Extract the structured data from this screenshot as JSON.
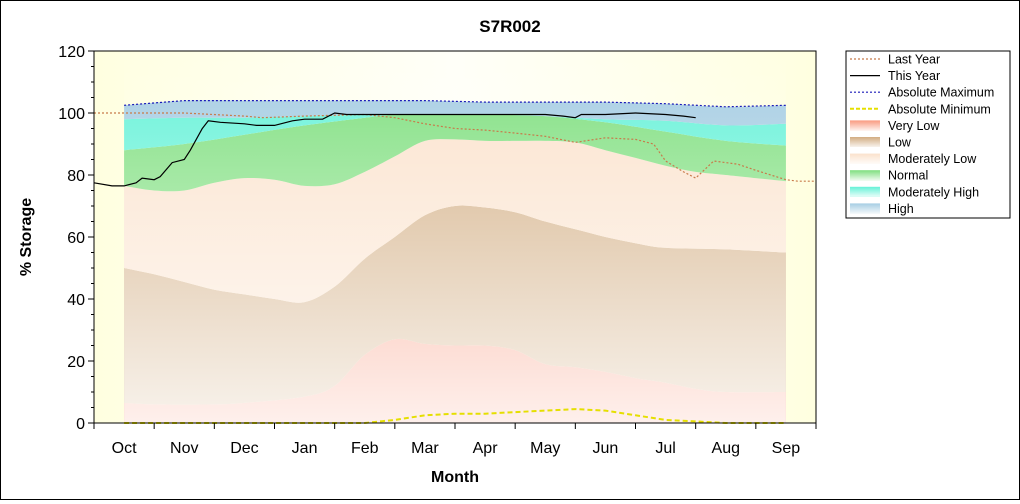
{
  "chart_data": {
    "type": "area",
    "title": "S7R002",
    "xlabel": "Month",
    "ylabel": "% Storage",
    "ylim": [
      0,
      120
    ],
    "yticks": [
      0,
      20,
      40,
      60,
      80,
      100,
      120
    ],
    "categories": [
      "Oct",
      "Nov",
      "Dec",
      "Jan",
      "Feb",
      "Mar",
      "Apr",
      "May",
      "Jun",
      "Jul",
      "Aug",
      "Sep"
    ],
    "x_domain": [
      -0.5,
      11.5
    ],
    "legend_position": "right",
    "bands": [
      {
        "name": "Very Low",
        "color": "#f99a80",
        "lower": [
          [
            0,
            0
          ],
          [
            11,
            0
          ]
        ],
        "upper": [
          [
            0,
            6.5
          ],
          [
            0.5,
            6
          ],
          [
            1.5,
            6
          ],
          [
            2,
            6.5
          ],
          [
            3,
            8.5
          ],
          [
            3.5,
            12
          ],
          [
            4,
            22
          ],
          [
            4.5,
            27
          ],
          [
            5,
            25.5
          ],
          [
            5.5,
            25
          ],
          [
            6,
            25
          ],
          [
            6.5,
            23.5
          ],
          [
            7,
            19
          ],
          [
            7.5,
            18
          ],
          [
            8,
            16.5
          ],
          [
            8.5,
            14.5
          ],
          [
            9,
            13
          ],
          [
            9.5,
            11
          ],
          [
            10,
            10
          ],
          [
            11,
            10
          ]
        ]
      },
      {
        "name": "Low",
        "color": "#d2ad82",
        "lower": "Very Low",
        "upper": [
          [
            0,
            50
          ],
          [
            0.5,
            48
          ],
          [
            1,
            45.5
          ],
          [
            1.5,
            43
          ],
          [
            2,
            41.5
          ],
          [
            2.5,
            40
          ],
          [
            3,
            39
          ],
          [
            3.5,
            44
          ],
          [
            4,
            53
          ],
          [
            4.5,
            60
          ],
          [
            5,
            67
          ],
          [
            5.5,
            70
          ],
          [
            6,
            69.5
          ],
          [
            6.5,
            68
          ],
          [
            7,
            65
          ],
          [
            7.5,
            62.5
          ],
          [
            8,
            60
          ],
          [
            8.5,
            58
          ],
          [
            9,
            56.5
          ],
          [
            10,
            56
          ],
          [
            11,
            55
          ]
        ]
      },
      {
        "name": "Moderately Low",
        "color": "#fbe2cc",
        "lower": "Low",
        "upper": [
          [
            0,
            76.5
          ],
          [
            0.5,
            75
          ],
          [
            1,
            75
          ],
          [
            1.5,
            77.5
          ],
          [
            2,
            79
          ],
          [
            2.5,
            78.5
          ],
          [
            3,
            76.5
          ],
          [
            3.5,
            77
          ],
          [
            4,
            81
          ],
          [
            4.5,
            86
          ],
          [
            5,
            91
          ],
          [
            5.5,
            91.5
          ],
          [
            6,
            91
          ],
          [
            6.5,
            91
          ],
          [
            7,
            91
          ],
          [
            7.5,
            90.5
          ],
          [
            8,
            88
          ],
          [
            8.5,
            85.5
          ],
          [
            9,
            83
          ],
          [
            9.5,
            81
          ],
          [
            10,
            80
          ],
          [
            11,
            78
          ]
        ]
      },
      {
        "name": "Normal",
        "color": "#7fdf7f",
        "lower": "Moderately Low",
        "upper": [
          [
            0,
            88
          ],
          [
            1,
            90
          ],
          [
            2,
            93
          ],
          [
            3,
            96
          ],
          [
            4,
            98.5
          ],
          [
            4.5,
            99.5
          ],
          [
            5,
            99.5
          ],
          [
            6,
            99.5
          ],
          [
            7,
            99
          ],
          [
            8,
            97
          ],
          [
            9,
            94
          ],
          [
            10,
            91
          ],
          [
            11,
            89.5
          ]
        ]
      },
      {
        "name": "Moderately High",
        "color": "#66f2d8",
        "lower": "Normal",
        "upper": [
          [
            0,
            98
          ],
          [
            1,
            98.5
          ],
          [
            2,
            98.5
          ],
          [
            3,
            99
          ],
          [
            4,
            99.5
          ],
          [
            5,
            99.5
          ],
          [
            6,
            99.5
          ],
          [
            7,
            99
          ],
          [
            8,
            98
          ],
          [
            9,
            97.5
          ],
          [
            10,
            96
          ],
          [
            11,
            96.5
          ]
        ]
      },
      {
        "name": "High",
        "color": "#a6cde3",
        "lower": "Moderately High",
        "upper": [
          [
            0,
            102.5
          ],
          [
            1,
            104
          ],
          [
            2,
            104
          ],
          [
            3,
            104
          ],
          [
            4,
            104
          ],
          [
            5,
            104
          ],
          [
            6,
            103.5
          ],
          [
            7,
            103.5
          ],
          [
            8,
            103.5
          ],
          [
            9,
            103
          ],
          [
            10,
            102
          ],
          [
            11,
            102.5
          ]
        ]
      }
    ],
    "series": [
      {
        "name": "Last Year",
        "color": "#c87a4a",
        "dash": "2,2",
        "points": [
          [
            -0.5,
            100
          ],
          [
            0,
            100
          ],
          [
            1,
            100
          ],
          [
            2,
            99
          ],
          [
            2.3,
            98.5
          ],
          [
            3,
            99
          ],
          [
            4,
            99.5
          ],
          [
            4.5,
            98.5
          ],
          [
            5,
            96.5
          ],
          [
            5.5,
            95
          ],
          [
            6,
            94.5
          ],
          [
            6.5,
            93.5
          ],
          [
            7,
            92.5
          ],
          [
            7.5,
            90.5
          ],
          [
            8,
            92
          ],
          [
            8.5,
            91.5
          ],
          [
            8.8,
            90
          ],
          [
            9,
            84.5
          ],
          [
            9.3,
            81
          ],
          [
            9.5,
            79
          ],
          [
            9.8,
            84.5
          ],
          [
            10.2,
            83.5
          ],
          [
            10.5,
            81.5
          ],
          [
            11,
            78.5
          ],
          [
            11.2,
            78
          ],
          [
            11.5,
            78
          ]
        ]
      },
      {
        "name": "This Year",
        "color": "#000000",
        "dash": "",
        "points": [
          [
            -0.5,
            77.5
          ],
          [
            -0.2,
            76.5
          ],
          [
            0,
            76.5
          ],
          [
            0.2,
            77.5
          ],
          [
            0.3,
            79
          ],
          [
            0.5,
            78.5
          ],
          [
            0.6,
            79.5
          ],
          [
            0.8,
            84
          ],
          [
            1,
            85
          ],
          [
            1.1,
            88
          ],
          [
            1.3,
            95
          ],
          [
            1.4,
            97.5
          ],
          [
            1.6,
            97
          ],
          [
            2,
            96.5
          ],
          [
            2.2,
            96
          ],
          [
            2.5,
            96
          ],
          [
            2.8,
            97.5
          ],
          [
            3,
            98
          ],
          [
            3.3,
            98
          ],
          [
            3.5,
            100
          ],
          [
            3.7,
            99.5
          ],
          [
            4,
            99.5
          ],
          [
            4.5,
            99.5
          ],
          [
            5,
            99.5
          ],
          [
            6,
            99.5
          ],
          [
            7,
            99.5
          ],
          [
            7.3,
            99
          ],
          [
            7.5,
            98.5
          ],
          [
            7.6,
            99.5
          ],
          [
            8,
            99.5
          ],
          [
            8.5,
            100
          ],
          [
            9,
            99.5
          ],
          [
            9.3,
            99
          ],
          [
            9.5,
            98.5
          ]
        ]
      },
      {
        "name": "Absolute Maximum",
        "color": "#1a1ab8",
        "dash": "2,2",
        "points": [
          [
            0,
            102.5
          ],
          [
            1,
            104
          ],
          [
            2,
            104
          ],
          [
            3,
            104
          ],
          [
            4,
            104
          ],
          [
            5,
            104
          ],
          [
            6,
            103.5
          ],
          [
            7,
            103.5
          ],
          [
            8,
            103.5
          ],
          [
            9,
            103
          ],
          [
            10,
            102
          ],
          [
            11,
            102.5
          ]
        ]
      },
      {
        "name": "Absolute Minimum",
        "color": "#e5df00",
        "dash": "5,3",
        "width": 2,
        "points": [
          [
            0,
            0
          ],
          [
            4,
            0
          ],
          [
            4.5,
            1
          ],
          [
            5,
            2.5
          ],
          [
            5.5,
            3
          ],
          [
            6,
            3
          ],
          [
            6.5,
            3.5
          ],
          [
            7,
            4
          ],
          [
            7.5,
            4.5
          ],
          [
            8,
            4
          ],
          [
            8.5,
            2.5
          ],
          [
            9,
            1
          ],
          [
            9.5,
            0.5
          ],
          [
            10,
            0
          ],
          [
            11,
            0
          ]
        ]
      }
    ],
    "legend": [
      {
        "label": "Last Year",
        "kind": "line",
        "color": "#c87a4a",
        "dash": "2,2"
      },
      {
        "label": "This Year",
        "kind": "line",
        "color": "#000000",
        "dash": ""
      },
      {
        "label": "Absolute Maximum",
        "kind": "line",
        "color": "#1a1ab8",
        "dash": "2,2"
      },
      {
        "label": "Absolute Minimum",
        "kind": "line",
        "color": "#e5df00",
        "dash": "4,2"
      },
      {
        "label": "Very Low",
        "kind": "box",
        "color": "#f99a80"
      },
      {
        "label": "Low",
        "kind": "box",
        "color": "#d2ad82"
      },
      {
        "label": "Moderately Low",
        "kind": "box",
        "color": "#fbe2cc"
      },
      {
        "label": "Normal",
        "kind": "box",
        "color": "#7fdf7f"
      },
      {
        "label": "Moderately High",
        "kind": "box",
        "color": "#66f2d8"
      },
      {
        "label": "High",
        "kind": "box",
        "color": "#a6cde3"
      }
    ]
  }
}
